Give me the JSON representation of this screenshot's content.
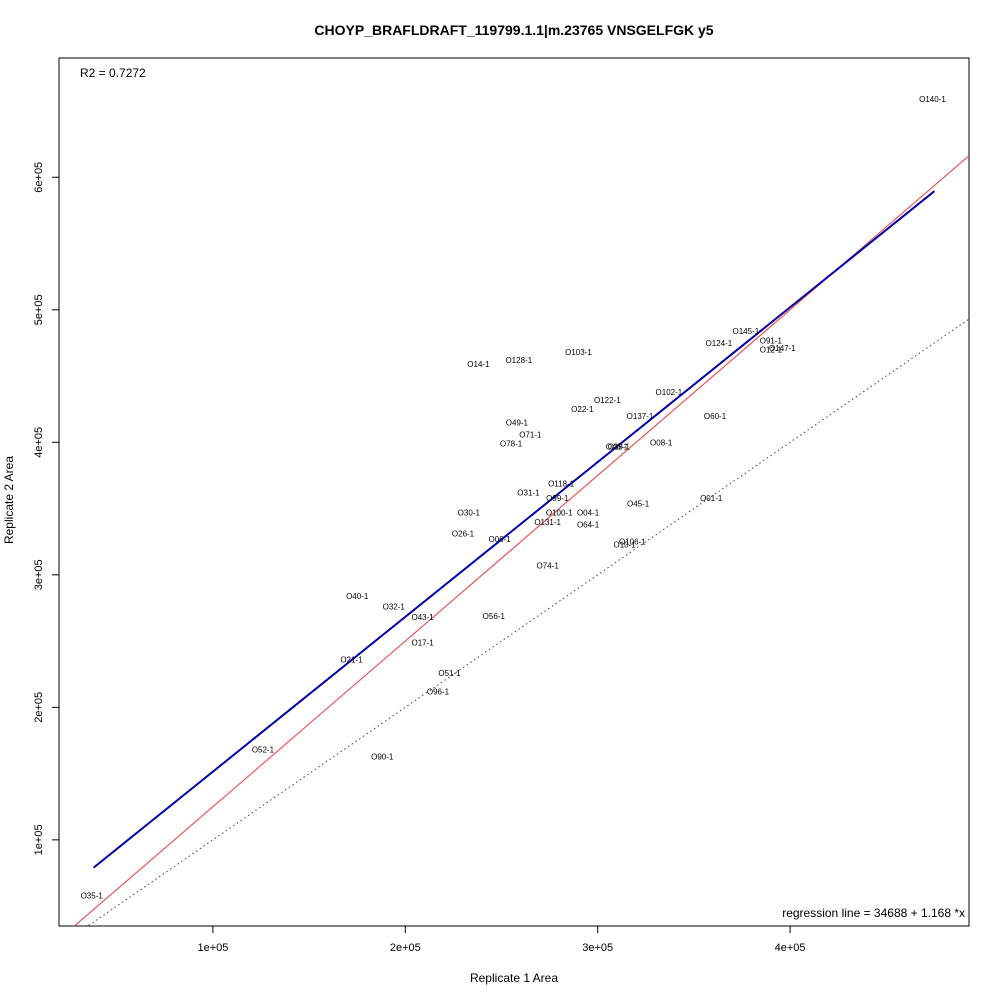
{
  "chart_data": {
    "type": "scatter",
    "title": "CHOYP_BRAFLDRAFT_119799.1.1|m.23765 VNSGELFGK y5",
    "xlabel": "Replicate 1 Area",
    "ylabel": "Replicate 2 Area",
    "xlim": [
      20000,
      493000
    ],
    "ylim": [
      35000,
      690000
    ],
    "x_ticks": [
      {
        "value": 100000,
        "label": "1e+05"
      },
      {
        "value": 200000,
        "label": "2e+05"
      },
      {
        "value": 300000,
        "label": "3e+05"
      },
      {
        "value": 400000,
        "label": "4e+05"
      }
    ],
    "y_ticks": [
      {
        "value": 100000,
        "label": "1e+05"
      },
      {
        "value": 200000,
        "label": "2e+05"
      },
      {
        "value": 300000,
        "label": "3e+05"
      },
      {
        "value": 400000,
        "label": "4e+05"
      },
      {
        "value": 500000,
        "label": "5e+05"
      },
      {
        "value": 600000,
        "label": "6e+05"
      }
    ],
    "grid": false,
    "r2_text": "R2 = 0.7272",
    "regression_text": "regression line = 34688 + 1.168 *x",
    "regression": {
      "intercept": 34688,
      "slope": 1.168,
      "x_range": [
        38000,
        475000
      ],
      "color": "#0000aa"
    },
    "identity_line": {
      "intercept": 0,
      "slope": 1.25,
      "color": "#ee5555"
    },
    "dotted_line": {
      "intercept": 0,
      "slope": 1.0,
      "color": "#444444"
    },
    "points": [
      {
        "label": "O140-1",
        "x": 474000,
        "y": 659000
      },
      {
        "label": "O145-1",
        "x": 377000,
        "y": 484000
      },
      {
        "label": "O91-1",
        "x": 390000,
        "y": 477000
      },
      {
        "label": "O124-1",
        "x": 363000,
        "y": 475000
      },
      {
        "label": "O12-1",
        "x": 390000,
        "y": 470000
      },
      {
        "label": "O147-1",
        "x": 396000,
        "y": 471000
      },
      {
        "label": "O103-1",
        "x": 290000,
        "y": 468000
      },
      {
        "label": "O128-1",
        "x": 259000,
        "y": 462000
      },
      {
        "label": "O14-1",
        "x": 238000,
        "y": 459000
      },
      {
        "label": "O102-1",
        "x": 337000,
        "y": 438000
      },
      {
        "label": "O122-1",
        "x": 305000,
        "y": 432000
      },
      {
        "label": "O22-1",
        "x": 292000,
        "y": 425000
      },
      {
        "label": "O137-1",
        "x": 322000,
        "y": 420000
      },
      {
        "label": "O60-1",
        "x": 361000,
        "y": 420000
      },
      {
        "label": "O49-1",
        "x": 258000,
        "y": 415000
      },
      {
        "label": "O71-1",
        "x": 265000,
        "y": 406000
      },
      {
        "label": "O78-1",
        "x": 255000,
        "y": 399000
      },
      {
        "label": "O46-1",
        "x": 310000,
        "y": 397000
      },
      {
        "label": "O18-1",
        "x": 311000,
        "y": 397000
      },
      {
        "label": "O08-1",
        "x": 333000,
        "y": 400000
      },
      {
        "label": "O118-1",
        "x": 281000,
        "y": 369000
      },
      {
        "label": "O31-1",
        "x": 264000,
        "y": 362000
      },
      {
        "label": "O99-1",
        "x": 279000,
        "y": 358000
      },
      {
        "label": "O01-1",
        "x": 359000,
        "y": 358000
      },
      {
        "label": "O45-1",
        "x": 321000,
        "y": 354000
      },
      {
        "label": "O30-1",
        "x": 233000,
        "y": 347000
      },
      {
        "label": "O100-1",
        "x": 280000,
        "y": 347000
      },
      {
        "label": "O04-1",
        "x": 295000,
        "y": 347000
      },
      {
        "label": "O131-1",
        "x": 274000,
        "y": 340000
      },
      {
        "label": "O64-1",
        "x": 295000,
        "y": 338000
      },
      {
        "label": "O26-1",
        "x": 230000,
        "y": 331000
      },
      {
        "label": "O06-1",
        "x": 249000,
        "y": 327000
      },
      {
        "label": "O106-1",
        "x": 318000,
        "y": 325000
      },
      {
        "label": "O10-1",
        "x": 314000,
        "y": 323000
      },
      {
        "label": "O74-1",
        "x": 274000,
        "y": 307000
      },
      {
        "label": "O40-1",
        "x": 175000,
        "y": 284000
      },
      {
        "label": "O32-1",
        "x": 194000,
        "y": 276000
      },
      {
        "label": "O43-1",
        "x": 209000,
        "y": 268000
      },
      {
        "label": "O56-1",
        "x": 246000,
        "y": 269000
      },
      {
        "label": "O17-1",
        "x": 209000,
        "y": 249000
      },
      {
        "label": "O21-1",
        "x": 172000,
        "y": 236000
      },
      {
        "label": "O51-1",
        "x": 223000,
        "y": 226000
      },
      {
        "label": "O96-1",
        "x": 217000,
        "y": 212000
      },
      {
        "label": "O52-1",
        "x": 126000,
        "y": 168000
      },
      {
        "label": "O90-1",
        "x": 188000,
        "y": 163000
      },
      {
        "label": "O35-1",
        "x": 37000,
        "y": 58000
      }
    ]
  }
}
